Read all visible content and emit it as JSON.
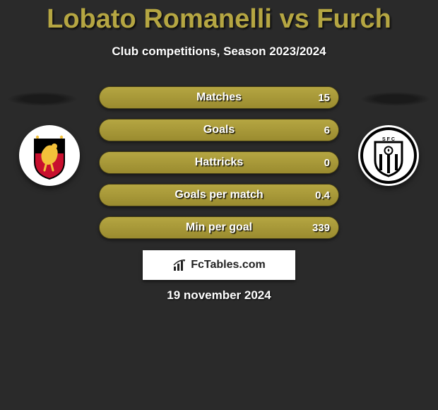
{
  "title": "Lobato Romanelli vs Furch",
  "subtitle": "Club competitions, Season 2023/2024",
  "colors": {
    "background": "#2a2a2a",
    "bar_fill": "#9a8b2f",
    "bar_fill_hi": "#b5a642",
    "title_color": "#b5a642",
    "text": "#ffffff"
  },
  "crests": {
    "left": {
      "outer": "#ffffff",
      "shield_top": "#000000",
      "shield_bottom": "#c8102e",
      "accent": "#f3c13a"
    },
    "right": {
      "outer": "#ffffff",
      "inner": "#000000",
      "stripe": "#ffffff"
    }
  },
  "bars": [
    {
      "label": "Matches",
      "left": "",
      "right": "15",
      "fill_pct": 100
    },
    {
      "label": "Goals",
      "left": "",
      "right": "6",
      "fill_pct": 100
    },
    {
      "label": "Hattricks",
      "left": "",
      "right": "0",
      "fill_pct": 100
    },
    {
      "label": "Goals per match",
      "left": "",
      "right": "0.4",
      "fill_pct": 100
    },
    {
      "label": "Min per goal",
      "left": "",
      "right": "339",
      "fill_pct": 100
    }
  ],
  "brand": "FcTables.com",
  "date": "19 november 2024"
}
